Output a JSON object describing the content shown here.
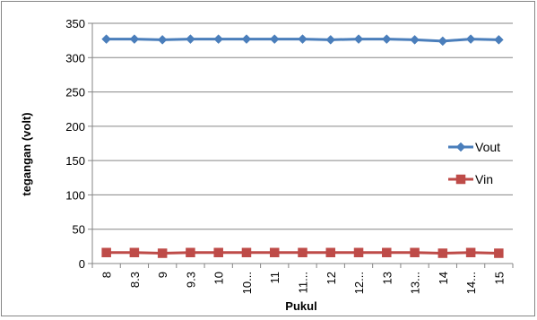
{
  "chart_data": {
    "type": "line",
    "title": "",
    "xlabel": "Pukul",
    "ylabel": "tegangan (volt)",
    "ylim": [
      0,
      350
    ],
    "yticks": [
      0,
      50,
      100,
      150,
      200,
      250,
      300,
      350
    ],
    "grid": "horizontal",
    "legend_position": "right",
    "categories": [
      "8",
      "8.3",
      "9",
      "9.3",
      "10",
      "10...",
      "11",
      "11...",
      "12",
      "12...",
      "13",
      "13...",
      "14",
      "14...",
      "15"
    ],
    "series": [
      {
        "name": "Vout",
        "color": "#4a7ebb",
        "marker": "diamond",
        "values": [
          327,
          327,
          326,
          327,
          327,
          327,
          327,
          327,
          326,
          327,
          327,
          326,
          324,
          327,
          326
        ]
      },
      {
        "name": "Vin",
        "color": "#be4b48",
        "marker": "square",
        "values": [
          16,
          16,
          15,
          16,
          16,
          16,
          16,
          16,
          16,
          16,
          16,
          16,
          15,
          16,
          15
        ]
      }
    ]
  }
}
